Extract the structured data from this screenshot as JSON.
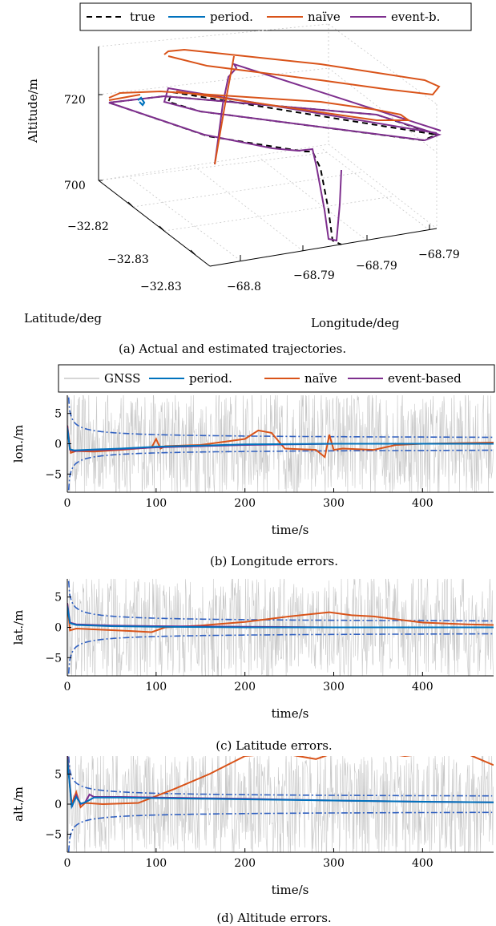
{
  "colors": {
    "gnss": "#c8c8c8",
    "periodic": "#0072bd",
    "naive": "#d95319",
    "event": "#7e2f8e",
    "true": "#000000",
    "bounds": "#3060c0"
  },
  "trajectory_figure": {
    "caption": "(a) Actual and estimated trajectories.",
    "legend": [
      "true",
      "period.",
      "naïve",
      "event-b."
    ],
    "chart_data": {
      "type": "line",
      "projection": "3d",
      "zlabel": "Altitude/m",
      "ylabel": "Latitude/deg",
      "xlabel": "Longitude/deg",
      "z_ticks": [
        "700",
        "720"
      ],
      "lat_ticks": [
        "−32.82",
        "−32.83",
        "−32.83"
      ],
      "lon_ticks": [
        "−68.8",
        "−68.79",
        "−68.79",
        "−68.79"
      ],
      "series": [
        {
          "name": "true"
        },
        {
          "name": "period."
        },
        {
          "name": "naïve"
        },
        {
          "name": "event-b."
        }
      ]
    }
  },
  "error_legend": [
    "GNSS",
    "period.",
    "naïve",
    "event-based"
  ],
  "error_charts": [
    {
      "caption": "(b) Longitude errors.",
      "ylabel": "lon./m",
      "xlabel": "time/s",
      "chart_data": {
        "type": "line",
        "xlim": [
          0,
          480
        ],
        "ylim": [
          -8,
          8
        ],
        "xticks": [
          0,
          100,
          200,
          300,
          400
        ],
        "yticks": [
          5,
          0,
          -5
        ],
        "gnss_amplitude": 8,
        "bound_final": 0.7,
        "series": [
          {
            "name": "naïve",
            "x": [
              0,
              4,
              10,
              30,
              60,
              95,
              100,
              105,
              110,
              150,
              200,
              215,
              230,
              245,
              280,
              290,
              295,
              300,
              310,
              345,
              370,
              400,
              440,
              480
            ],
            "y": [
              3,
              -1.5,
              -1.2,
              -1.3,
              -1.0,
              -0.6,
              0.8,
              -0.8,
              -0.4,
              -0.2,
              0.8,
              2.2,
              1.8,
              -0.8,
              -1.0,
              -2.2,
              1.5,
              -1.0,
              -0.8,
              -1.0,
              -0.2,
              0.0,
              0.1,
              0.2
            ]
          },
          {
            "name": "event-based",
            "x": [
              0,
              3,
              8,
              20,
              60,
              100,
              150,
              200,
              300,
              400,
              480
            ],
            "y": [
              3,
              -1.0,
              -1.2,
              -1.1,
              -0.9,
              -0.6,
              -0.4,
              -0.2,
              0.0,
              0.0,
              0.0
            ]
          },
          {
            "name": "period.",
            "x": [
              0,
              3,
              8,
              20,
              60,
              100,
              150,
              200,
              300,
              400,
              480
            ],
            "y": [
              2.6,
              -0.9,
              -1.1,
              -1.0,
              -0.8,
              -0.5,
              -0.3,
              -0.1,
              0.0,
              0.0,
              0.0
            ]
          }
        ]
      }
    },
    {
      "caption": "(c) Latitude errors.",
      "ylabel": "lat./m",
      "xlabel": "time/s",
      "chart_data": {
        "type": "line",
        "xlim": [
          0,
          480
        ],
        "ylim": [
          -8,
          8
        ],
        "xticks": [
          0,
          100,
          200,
          300,
          400
        ],
        "yticks": [
          5,
          0,
          -5
        ],
        "gnss_amplitude": 8,
        "bound_final": 0.7,
        "series": [
          {
            "name": "naïve",
            "x": [
              0,
              3,
              10,
              40,
              70,
              95,
              110,
              150,
              200,
              250,
              295,
              320,
              345,
              400,
              450,
              480
            ],
            "y": [
              4,
              -0.5,
              -0.2,
              -0.4,
              -0.6,
              -0.8,
              0.0,
              0.3,
              0.9,
              1.8,
              2.5,
              2.0,
              1.8,
              0.8,
              0.5,
              0.4
            ]
          },
          {
            "name": "event-based",
            "x": [
              0,
              3,
              10,
              50,
              100,
              200,
              300,
              400,
              480
            ],
            "y": [
              4,
              0.8,
              0.5,
              0.3,
              0.2,
              0.1,
              0.0,
              0.0,
              0.0
            ]
          },
          {
            "name": "period.",
            "x": [
              0,
              3,
              10,
              50,
              100,
              200,
              300,
              400,
              480
            ],
            "y": [
              3.5,
              0.7,
              0.4,
              0.2,
              0.1,
              0.0,
              0.0,
              0.0,
              0.0
            ]
          }
        ]
      }
    },
    {
      "caption": "(d) Altitude errors.",
      "ylabel": "alt./m",
      "xlabel": "time/s",
      "chart_data": {
        "type": "line",
        "xlim": [
          0,
          480
        ],
        "ylim": [
          -8,
          8
        ],
        "xticks": [
          0,
          100,
          200,
          300,
          400
        ],
        "yticks": [
          5,
          0,
          -5
        ],
        "gnss_amplitude": 8,
        "bound_final": 1.0,
        "series": [
          {
            "name": "naïve",
            "x": [
              0,
              5,
              10,
              15,
              20,
              40,
              80,
              120,
              160,
              200,
              240,
              280,
              300,
              330,
              380,
              440,
              480
            ],
            "y": [
              8,
              0.0,
              2.0,
              -0.5,
              0.2,
              0.0,
              0.2,
              2.5,
              5.0,
              8.0,
              8.5,
              7.5,
              8.5,
              9.0,
              8.0,
              9.0,
              6.5
            ]
          },
          {
            "name": "event-based",
            "x": [
              0,
              5,
              10,
              15,
              20,
              25,
              30,
              60,
              100,
              200,
              300,
              400,
              480
            ],
            "y": [
              8,
              -0.5,
              1.5,
              0.0,
              0.3,
              1.6,
              1.2,
              1.2,
              1.1,
              0.9,
              0.6,
              0.4,
              0.3
            ]
          },
          {
            "name": "period.",
            "x": [
              0,
              5,
              10,
              15,
              20,
              30,
              60,
              100,
              200,
              300,
              400,
              480
            ],
            "y": [
              7.5,
              -0.4,
              1.2,
              0.1,
              0.3,
              1.1,
              1.1,
              1.0,
              0.8,
              0.6,
              0.4,
              0.3
            ]
          }
        ]
      }
    }
  ]
}
